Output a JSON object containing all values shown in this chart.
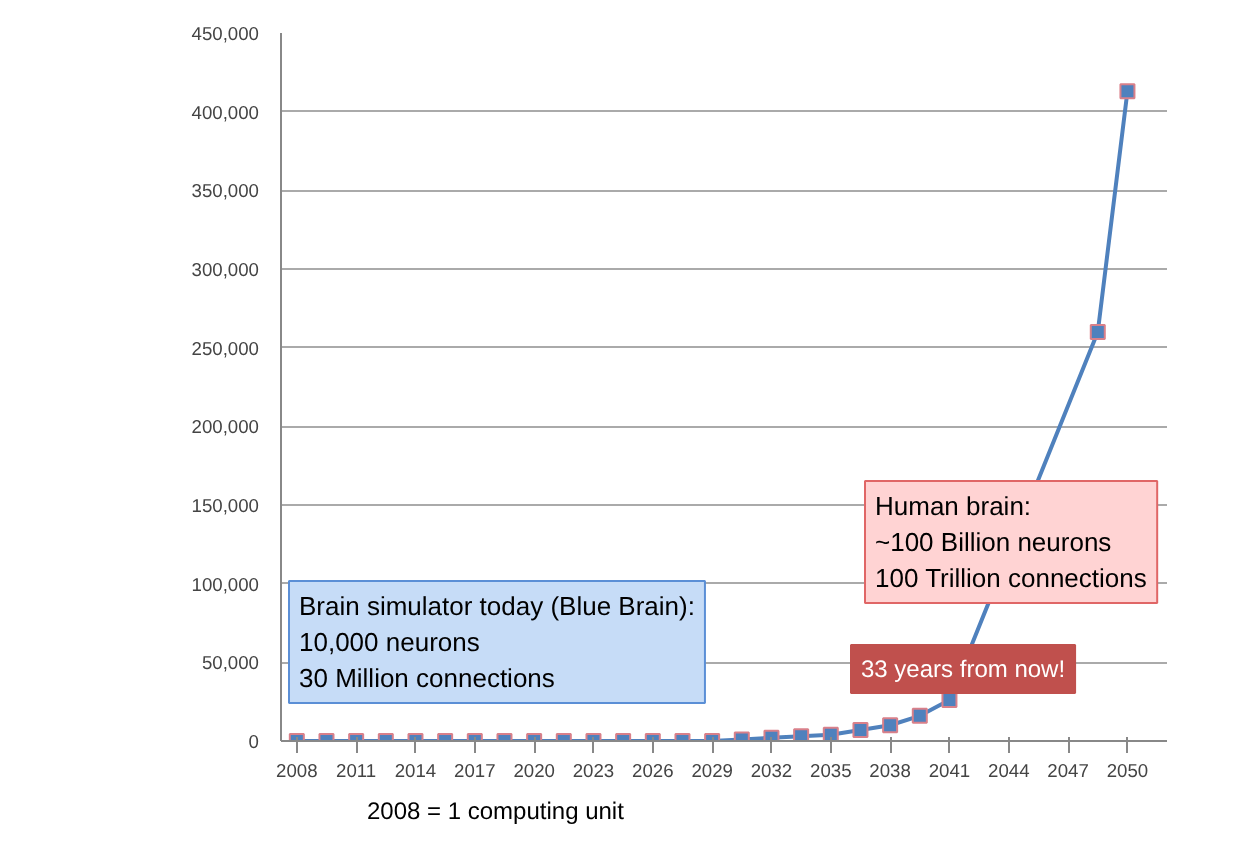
{
  "chart_data": {
    "type": "line",
    "x": [
      2008,
      2009.5,
      2011,
      2012.5,
      2014,
      2015.5,
      2017,
      2018.5,
      2020,
      2021.5,
      2023,
      2024.5,
      2026,
      2027.5,
      2029,
      2030.5,
      2032,
      2033.5,
      2035,
      2036.5,
      2038,
      2039.5,
      2041,
      2048.5,
      2050
    ],
    "series": [
      {
        "color": "#4f81bd",
        "values": [
          0,
          0,
          0,
          0,
          0,
          0,
          0,
          0,
          0,
          0,
          0,
          0,
          0,
          0,
          0,
          1000,
          2000,
          3000,
          4000,
          7000,
          10000,
          16000,
          26000,
          260000,
          413000
        ]
      }
    ],
    "xlim": [
      2007.2,
      2052
    ],
    "xticks": [
      2008,
      2011,
      2014,
      2017,
      2020,
      2023,
      2026,
      2029,
      2032,
      2035,
      2038,
      2041,
      2044,
      2047,
      2050
    ],
    "ylim": [
      0,
      450000
    ],
    "yticks": [
      0,
      {
        "value": 50000,
        "label": "50,000"
      },
      {
        "value": 100000,
        "label": "100,000"
      },
      {
        "value": 150000,
        "label": "150,000"
      },
      {
        "value": 200000,
        "label": "200,000"
      },
      {
        "value": 250000,
        "label": "250,000"
      },
      {
        "value": 300000,
        "label": "300,000"
      },
      {
        "value": 350000,
        "label": "350,000"
      },
      {
        "value": 400000,
        "label": "400,000"
      },
      {
        "value": 450000,
        "label": "450,000"
      }
    ],
    "grid": "y",
    "marker": "square",
    "line_style": "solid",
    "annotations": [
      "Human brain:\n~100 Billion neurons\n100 Trillion connections",
      "33 years from now!",
      "Brain simulator today (Blue Brain):\n10,000 neurons\n30 Million connections",
      "2008 = 1 computing unit"
    ]
  }
}
